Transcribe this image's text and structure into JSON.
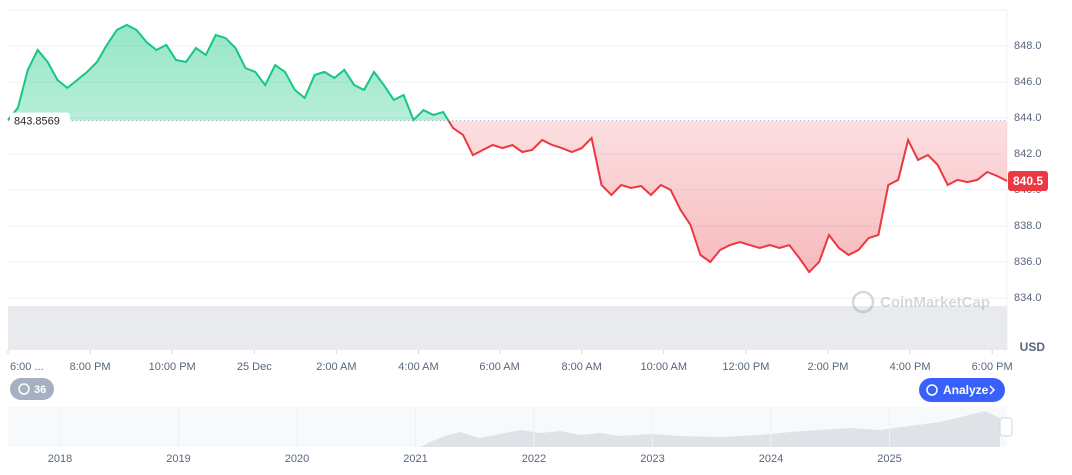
{
  "chart_data": {
    "type": "line",
    "values": [
      843.89,
      844.56,
      846.67,
      847.78,
      847.11,
      846.11,
      845.67,
      846.11,
      846.56,
      847.11,
      848.06,
      848.89,
      849.17,
      848.89,
      848.22,
      847.78,
      848.06,
      847.22,
      847.11,
      847.89,
      847.5,
      848.61,
      848.44,
      847.89,
      846.78,
      846.56,
      845.83,
      846.94,
      846.56,
      845.56,
      845.11,
      846.39,
      846.56,
      846.22,
      846.67,
      845.83,
      845.56,
      846.56,
      845.83,
      845.0,
      845.28,
      843.89,
      844.44,
      844.17,
      844.33,
      843.44,
      843.06,
      841.94,
      842.22,
      842.5,
      842.33,
      842.5,
      842.11,
      842.22,
      842.78,
      842.5,
      842.33,
      842.11,
      842.33,
      842.89,
      840.28,
      839.72,
      840.28,
      840.11,
      840.22,
      839.72,
      840.28,
      840.0,
      838.89,
      838.06,
      836.39,
      836.0,
      836.67,
      836.94,
      837.11,
      836.94,
      836.78,
      836.94,
      836.78,
      836.94,
      836.22,
      835.44,
      836.0,
      837.5,
      836.78,
      836.39,
      836.67,
      837.33,
      837.5,
      840.28,
      840.56,
      842.78,
      841.67,
      841.94,
      841.39,
      840.28,
      840.56,
      840.44,
      840.56,
      841.0,
      840.78,
      840.5
    ],
    "baseline": 843.8569,
    "colors": {
      "up": "#16c784",
      "down": "#ea3943"
    },
    "xlim": [
      0,
      101
    ],
    "xticks": [
      {
        "value": 0,
        "label": "6:00 ..."
      },
      {
        "value": 8.3,
        "label": "8:00 PM"
      },
      {
        "value": 16.6,
        "label": "10:00 PM"
      },
      {
        "value": 24.9,
        "label": "25 Dec"
      },
      {
        "value": 33.2,
        "label": "2:00 AM"
      },
      {
        "value": 41.5,
        "label": "4:00 AM"
      },
      {
        "value": 49.7,
        "label": "6:00 AM"
      },
      {
        "value": 58.0,
        "label": "8:00 AM"
      },
      {
        "value": 66.3,
        "label": "10:00 AM"
      },
      {
        "value": 74.6,
        "label": "12:00 PM"
      },
      {
        "value": 82.9,
        "label": "2:00 PM"
      },
      {
        "value": 91.2,
        "label": "4:00 PM"
      },
      {
        "value": 99.5,
        "label": "6:00 PM"
      }
    ],
    "ylim": [
      834,
      850
    ],
    "yticks": [
      {
        "value": 834,
        "label": "834.0"
      },
      {
        "value": 836,
        "label": "836.0"
      },
      {
        "value": 838,
        "label": "838.0"
      },
      {
        "value": 840,
        "label": "840.0"
      },
      {
        "value": 842,
        "label": "842.0"
      },
      {
        "value": 844,
        "label": "844.0"
      },
      {
        "value": 846,
        "label": "846.0"
      },
      {
        "value": 848,
        "label": "848.0"
      }
    ],
    "grid": true,
    "y_axis_label": "USD",
    "watermark": "CoinMarketCap"
  },
  "controls": {
    "history_count": "36",
    "analyze": "Analyze"
  },
  "navigator": {
    "years": [
      "2018",
      "2019",
      "2020",
      "2021",
      "2022",
      "2023",
      "2024",
      "2025"
    ]
  }
}
